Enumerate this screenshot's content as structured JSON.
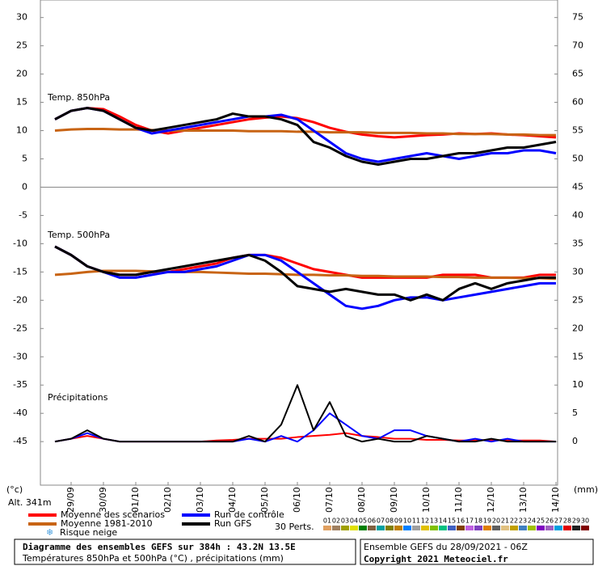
{
  "chart_data": {
    "type": "line",
    "panel_labels": [
      "Temp. 850hPa",
      "Temp. 500hPa",
      "Précipitations"
    ],
    "categories": [
      null,
      "29/09",
      null,
      "30/09",
      null,
      "01/10",
      null,
      "02/10",
      null,
      "03/10",
      null,
      "04/10",
      null,
      "05/10",
      null,
      "06/10",
      null,
      "07/10",
      null,
      "08/10",
      null,
      "09/10",
      null,
      "10/10",
      null,
      "11/10",
      null,
      "12/10",
      null,
      "13/10",
      null,
      "14/10"
    ],
    "ylim": [
      -52.7,
      33.1
    ],
    "yticks": [
      30,
      25,
      20,
      15,
      10,
      5,
      0,
      -5,
      -10,
      -15,
      -20,
      -25,
      -30,
      -35,
      -40,
      -45
    ],
    "y2lim": [
      -7.7,
      78.1
    ],
    "y2ticks": [
      75,
      70,
      65,
      60,
      55,
      50,
      45,
      40,
      35,
      30,
      25,
      20,
      15,
      10,
      5,
      0
    ],
    "y_unit": "(°c)",
    "y2_unit": "(mm)",
    "altitude": "Alt. 341m",
    "series": [
      {
        "name": "Moyenne des scénarios",
        "color": "#ff0000",
        "t850": [
          12,
          13.5,
          14,
          13.8,
          12.5,
          11,
          10,
          9.5,
          10,
          10.5,
          11,
          11.5,
          12,
          12.3,
          12.5,
          12.2,
          11.5,
          10.5,
          9.8,
          9.3,
          9,
          8.8,
          9,
          9.2,
          9.3,
          9.5,
          9.4,
          9.5,
          9.3,
          9.2,
          9,
          8.8
        ],
        "t500": [
          -10.5,
          -12,
          -14,
          -15,
          -15.5,
          -15.5,
          -15,
          -15,
          -14.5,
          -14,
          -13.5,
          -12.5,
          -12,
          -12,
          -12.5,
          -13.5,
          -14.5,
          -15,
          -15.5,
          -16,
          -16,
          -16,
          -16,
          -16,
          -15.5,
          -15.5,
          -15.5,
          -16,
          -16,
          -16,
          -15.5,
          -15.5
        ],
        "precip": [
          0,
          0.5,
          1,
          0.5,
          0,
          0,
          0,
          0,
          0,
          0,
          0.2,
          0.3,
          0.5,
          0.5,
          0.5,
          0.8,
          1,
          1.2,
          1.5,
          1,
          0.8,
          0.5,
          0.5,
          0.3,
          0.3,
          0.2,
          0.2,
          0.3,
          0.2,
          0.2,
          0.2,
          0
        ]
      },
      {
        "name": "Moyenne 1981-2010",
        "color": "#c86414",
        "t850": [
          10,
          10.2,
          10.3,
          10.3,
          10.2,
          10.2,
          10.1,
          10,
          10,
          10,
          10,
          10,
          9.9,
          9.9,
          9.9,
          9.8,
          9.8,
          9.7,
          9.7,
          9.7,
          9.6,
          9.6,
          9.6,
          9.5,
          9.5,
          9.4,
          9.4,
          9.4,
          9.3,
          9.3,
          9.2,
          9.2
        ],
        "t500": [
          -15.5,
          -15.3,
          -15,
          -14.8,
          -14.8,
          -14.8,
          -14.9,
          -15,
          -15,
          -15,
          -15.1,
          -15.2,
          -15.3,
          -15.3,
          -15.4,
          -15.5,
          -15.5,
          -15.6,
          -15.6,
          -15.7,
          -15.7,
          -15.8,
          -15.8,
          -15.8,
          -15.9,
          -15.9,
          -16,
          -16,
          -16,
          -16.1,
          -16.1,
          -16.2
        ]
      },
      {
        "name": "Run de contrôle",
        "color": "#0000ff",
        "t850": [
          12,
          13.5,
          14,
          13.5,
          12,
          10.5,
          9.5,
          10,
          10.5,
          11,
          11.5,
          12,
          12.5,
          12.5,
          12.8,
          12,
          10,
          8,
          6,
          5,
          4.5,
          5,
          5.5,
          6,
          5.5,
          5,
          5.5,
          6,
          6,
          6.5,
          6.5,
          6
        ],
        "t500": [
          -10.5,
          -12,
          -14,
          -15,
          -16,
          -16,
          -15.5,
          -15,
          -15,
          -14.5,
          -14,
          -13,
          -12,
          -12,
          -13,
          -15,
          -17,
          -19,
          -21,
          -21.5,
          -21,
          -20,
          -19.5,
          -19.5,
          -20,
          -19.5,
          -19,
          -18.5,
          -18,
          -17.5,
          -17,
          -17
        ],
        "precip": [
          0,
          0.5,
          1.5,
          0.5,
          0,
          0,
          0,
          0,
          0,
          0,
          0,
          0,
          0.5,
          0,
          1,
          0,
          2,
          5,
          3,
          1,
          0.5,
          2,
          2,
          1,
          0.5,
          0,
          0.5,
          0,
          0.5,
          0,
          0,
          0
        ]
      },
      {
        "name": "Run GFS",
        "color": "#000000",
        "t850": [
          12,
          13.5,
          14,
          13.5,
          12,
          10.5,
          10,
          10.5,
          11,
          11.5,
          12,
          13,
          12.5,
          12.5,
          12,
          11,
          8,
          7,
          5.5,
          4.5,
          4,
          4.5,
          5,
          5,
          5.5,
          6,
          6,
          6.5,
          7,
          7,
          7.5,
          8
        ],
        "t500": [
          -10.5,
          -12,
          -14,
          -15,
          -15.5,
          -15.5,
          -15,
          -14.5,
          -14,
          -13.5,
          -13,
          -12.5,
          -12,
          -13,
          -15,
          -17.5,
          -18,
          -18.5,
          -18,
          -18.5,
          -19,
          -19,
          -20,
          -19,
          -20,
          -18,
          -17,
          -18,
          -17,
          -16.5,
          -16,
          -16
        ],
        "precip": [
          0,
          0.5,
          2,
          0.5,
          0,
          0,
          0,
          0,
          0,
          0,
          0,
          0,
          1,
          0,
          3,
          10,
          2,
          7,
          1,
          0,
          0.5,
          0,
          0,
          1,
          0.5,
          0,
          0,
          0.5,
          0,
          0,
          0,
          0
        ]
      }
    ],
    "snow_label": "Risque neige",
    "perturbations": {
      "label": "30 Perts.",
      "members": [
        {
          "name": "01",
          "color": "#e0a060"
        },
        {
          "name": "02",
          "color": "#a08060"
        },
        {
          "name": "03",
          "color": "#a0a000"
        },
        {
          "name": "04",
          "color": "#e0e000"
        },
        {
          "name": "05",
          "color": "#008000"
        },
        {
          "name": "06",
          "color": "#806040"
        },
        {
          "name": "07",
          "color": "#00a0a0"
        },
        {
          "name": "08",
          "color": "#808000"
        },
        {
          "name": "09",
          "color": "#c08000"
        },
        {
          "name": "10",
          "color": "#0080ff"
        },
        {
          "name": "11",
          "color": "#a0a0a0"
        },
        {
          "name": "12",
          "color": "#e0c000"
        },
        {
          "name": "13",
          "color": "#80c000"
        },
        {
          "name": "14",
          "color": "#00c080"
        },
        {
          "name": "15",
          "color": "#4060c0"
        },
        {
          "name": "16",
          "color": "#804000"
        },
        {
          "name": "17",
          "color": "#c060e0"
        },
        {
          "name": "18",
          "color": "#8040c0"
        },
        {
          "name": "19",
          "color": "#e08000"
        },
        {
          "name": "20",
          "color": "#606060"
        },
        {
          "name": "21",
          "color": "#e0c080"
        },
        {
          "name": "22",
          "color": "#c0a000"
        },
        {
          "name": "23",
          "color": "#4080c0"
        },
        {
          "name": "24",
          "color": "#a0c000"
        },
        {
          "name": "25",
          "color": "#8000c0"
        },
        {
          "name": "26",
          "color": "#a060c0"
        },
        {
          "name": "27",
          "color": "#00a0e0"
        },
        {
          "name": "28",
          "color": "#e00000"
        },
        {
          "name": "29",
          "color": "#202020"
        },
        {
          "name": "30",
          "color": "#800000"
        }
      ]
    },
    "footer": {
      "title": "Diagramme des ensembles GEFS sur 384h : 43.2N 13.5E",
      "subtitle": "Températures 850hPa et 500hPa (°C) , précipitations (mm)",
      "run": "Ensemble GEFS du 28/09/2021 - 06Z",
      "copyright": "Copyright 2021 Meteociel.fr"
    }
  }
}
